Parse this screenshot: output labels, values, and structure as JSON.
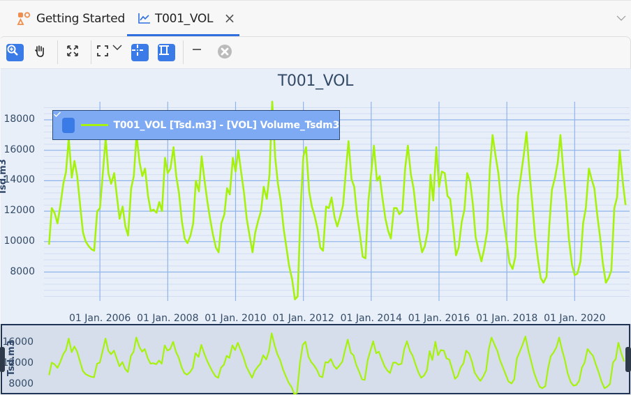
{
  "tabs": [
    {
      "label": "Getting Started",
      "icon": "getting-started-shapes-icon",
      "active": false
    },
    {
      "label": "T001_VOL",
      "icon": "line-chart-icon",
      "active": true,
      "close_icon": "close-icon"
    }
  ],
  "tabbar": {
    "overflow_icon": "chevron-down-icon"
  },
  "toolbar": {
    "buttons": [
      {
        "name": "zoom-in",
        "icon": "zoom-in-icon",
        "active": true
      },
      {
        "name": "pan",
        "icon": "hand-pan-icon",
        "active": false
      },
      {
        "name": "fit-all",
        "icon": "expand-arrows-icon",
        "active": false
      },
      {
        "name": "zoom-region",
        "icon": "selection-frame-icon",
        "active": false,
        "has_dropdown": true
      },
      {
        "name": "crosshair",
        "icon": "crosshair-icon",
        "active": true
      },
      {
        "name": "range-selector",
        "icon": "range-bar-icon",
        "active": true
      },
      {
        "name": "minimize",
        "icon": "minus-icon",
        "active": false
      },
      {
        "name": "clear",
        "icon": "clear-circle-icon",
        "active": false,
        "disabled": true
      }
    ]
  },
  "colors": {
    "accent": "#3a7be8",
    "series": "#a6f20d",
    "plot_bg": "#e8eff9",
    "grid_major": "#8fb4ec",
    "grid_minor": "#d2def2",
    "legend_bg": "#7ea9f3",
    "navigator_bg": "#d5deea"
  },
  "chart_data": {
    "type": "line",
    "title": "T001_VOL",
    "xlabel": "",
    "ylabel": "Tsd.m3",
    "ylim": [
      6100,
      19300
    ],
    "xlim": [
      "2004-07",
      "2021-06"
    ],
    "grid": true,
    "legend": {
      "position": "top-left",
      "entries": [
        "T001_VOL [Tsd.m3] - [VOL] Volume_Tsdm3"
      ],
      "checked": true
    },
    "y_ticks": [
      18000,
      16000,
      14000,
      12000,
      10000,
      8000
    ],
    "x_ticks": [
      "01 Jan. 2006",
      "01 Jan. 2008",
      "01 Jan. 2010",
      "01 Jan. 2012",
      "01 Jan. 2014",
      "01 Jan. 2016",
      "01 Jan. 2018",
      "01 Jan. 2020"
    ],
    "series": [
      {
        "name": "T001_VOL [Tsd.m3] - [VOL] Volume_Tsdm3",
        "x": [
          2004.5,
          2004.58,
          2004.66,
          2004.75,
          2004.83,
          2004.92,
          2005.0,
          2005.08,
          2005.17,
          2005.25,
          2005.33,
          2005.42,
          2005.5,
          2005.58,
          2005.67,
          2005.75,
          2005.83,
          2005.92,
          2006.0,
          2006.08,
          2006.17,
          2006.25,
          2006.33,
          2006.42,
          2006.5,
          2006.58,
          2006.67,
          2006.75,
          2006.83,
          2006.92,
          2007.0,
          2007.08,
          2007.17,
          2007.25,
          2007.33,
          2007.42,
          2007.5,
          2007.58,
          2007.67,
          2007.75,
          2007.83,
          2007.92,
          2008.0,
          2008.08,
          2008.17,
          2008.25,
          2008.33,
          2008.42,
          2008.5,
          2008.58,
          2008.67,
          2008.75,
          2008.83,
          2008.92,
          2009.0,
          2009.08,
          2009.17,
          2009.25,
          2009.33,
          2009.42,
          2009.5,
          2009.58,
          2009.67,
          2009.75,
          2009.83,
          2009.92,
          2010.0,
          2010.08,
          2010.17,
          2010.25,
          2010.33,
          2010.42,
          2010.5,
          2010.58,
          2010.67,
          2010.75,
          2010.83,
          2010.92,
          2011.0,
          2011.08,
          2011.17,
          2011.25,
          2011.33,
          2011.42,
          2011.5,
          2011.58,
          2011.67,
          2011.75,
          2011.83,
          2011.92,
          2012.0,
          2012.08,
          2012.17,
          2012.25,
          2012.33,
          2012.42,
          2012.5,
          2012.58,
          2012.67,
          2012.75,
          2012.83,
          2012.92,
          2013.0,
          2013.08,
          2013.17,
          2013.25,
          2013.33,
          2013.42,
          2013.5,
          2013.58,
          2013.67,
          2013.75,
          2013.83,
          2013.92,
          2014.0,
          2014.08,
          2014.17,
          2014.25,
          2014.33,
          2014.42,
          2014.5,
          2014.58,
          2014.67,
          2014.75,
          2014.83,
          2014.92,
          2015.0,
          2015.08,
          2015.17,
          2015.25,
          2015.33,
          2015.42,
          2015.5,
          2015.58,
          2015.67,
          2015.75,
          2015.83,
          2015.92,
          2016.0,
          2016.08,
          2016.17,
          2016.25,
          2016.33,
          2016.42,
          2016.5,
          2016.58,
          2016.67,
          2016.75,
          2016.83,
          2016.92,
          2017.0,
          2017.08,
          2017.17,
          2017.25,
          2017.33,
          2017.42,
          2017.5,
          2017.58,
          2017.67,
          2017.75,
          2017.83,
          2017.92,
          2018.0,
          2018.08,
          2018.17,
          2018.25,
          2018.33,
          2018.42,
          2018.5,
          2018.58,
          2018.67,
          2018.75,
          2018.83,
          2018.92,
          2019.0,
          2019.08,
          2019.17,
          2019.25,
          2019.33,
          2019.42,
          2019.5,
          2019.58,
          2019.67,
          2019.75,
          2019.83,
          2019.92,
          2020.0,
          2020.08,
          2020.17,
          2020.25,
          2020.33,
          2020.42,
          2020.5,
          2020.58,
          2020.67,
          2020.75,
          2020.83,
          2020.92,
          2021.0,
          2021.08,
          2021.17,
          2021.25,
          2021.33,
          2021.42,
          2021.5
        ],
        "values": [
          9800,
          12200,
          11900,
          11200,
          12300,
          13800,
          14600,
          16800,
          14200,
          15300,
          14300,
          12300,
          10600,
          10000,
          9700,
          9500,
          9400,
          12000,
          12200,
          14300,
          16800,
          14500,
          13800,
          14500,
          13000,
          11500,
          12300,
          11000,
          10400,
          13500,
          14300,
          17000,
          15200,
          14300,
          14800,
          13000,
          12000,
          12100,
          11900,
          12600,
          12000,
          15500,
          14500,
          14800,
          16200,
          14300,
          13200,
          11300,
          10200,
          9900,
          10400,
          11200,
          14000,
          13300,
          15600,
          14100,
          12600,
          11500,
          10500,
          9600,
          9300,
          11200,
          11800,
          13500,
          13100,
          15500,
          14600,
          16000,
          14500,
          13200,
          11500,
          10300,
          9300,
          10600,
          11400,
          12000,
          13600,
          12800,
          14400,
          19200,
          15500,
          13800,
          12700,
          10800,
          9600,
          8400,
          7500,
          6200,
          6400,
          12300,
          15600,
          16200,
          13300,
          12300,
          11700,
          10800,
          9600,
          9400,
          12300,
          12200,
          12900,
          11600,
          11000,
          11600,
          12400,
          14600,
          16600,
          14100,
          13600,
          11800,
          10400,
          9000,
          8900,
          12700,
          14500,
          16300,
          14000,
          14300,
          12900,
          11500,
          10700,
          10200,
          12200,
          12200,
          11800,
          12000,
          14800,
          16300,
          14400,
          13500,
          11900,
          10300,
          9300,
          9700,
          10700,
          14400,
          12700,
          16200,
          13600,
          14600,
          14500,
          13000,
          12800,
          10900,
          9100,
          9600,
          11300,
          12100,
          14500,
          13900,
          12400,
          10300,
          9400,
          8700,
          9500,
          10700,
          14800,
          17000,
          15600,
          14500,
          12700,
          11200,
          9900,
          8600,
          8200,
          9000,
          13000,
          14400,
          15700,
          17200,
          14500,
          12500,
          10400,
          8800,
          7600,
          7300,
          7700,
          11000,
          13400,
          14200,
          15200,
          17000,
          14500,
          12600,
          10200,
          8500,
          7800,
          7900,
          8700,
          11200,
          12200,
          14800,
          14100,
          13500,
          11700,
          10300,
          8600,
          7300,
          7600,
          8100,
          12200,
          12900,
          16000,
          13900,
          12400
        ]
      }
    ],
    "navigator": {
      "type": "line",
      "y_ticks": [
        16000,
        12000,
        8000
      ],
      "ylabel": "Tsd.m3",
      "range": "full"
    }
  }
}
